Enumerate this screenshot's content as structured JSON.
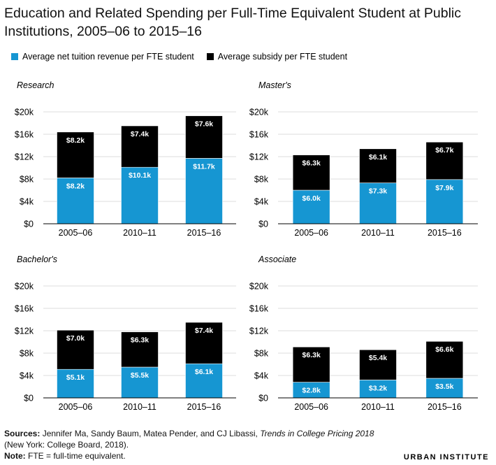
{
  "title": "Education and Related Spending per Full-Time Equivalent Student at Public Institutions, 2005–06 to 2015–16",
  "legend": [
    {
      "label": "Average net tuition revenue per FTE student",
      "color": "#1696d2"
    },
    {
      "label": "Average subsidy per FTE student",
      "color": "#000000"
    }
  ],
  "chart_data": [
    {
      "type": "bar",
      "stacked": true,
      "title": "Research",
      "categories": [
        "2005–06",
        "2010–11",
        "2015–16"
      ],
      "ylim": [
        0,
        20000
      ],
      "yticks": [
        "$0",
        "$4k",
        "$8k",
        "$12k",
        "$16k",
        "$20k"
      ],
      "series": [
        {
          "name": "Average net tuition revenue per FTE student",
          "values": [
            8200,
            10100,
            11700
          ],
          "labels": [
            "$8.2k",
            "$10.1k",
            "$11.7k"
          ]
        },
        {
          "name": "Average subsidy per FTE student",
          "values": [
            8200,
            7400,
            7600
          ],
          "labels": [
            "$8.2k",
            "$7.4k",
            "$7.6k"
          ]
        }
      ]
    },
    {
      "type": "bar",
      "stacked": true,
      "title": "Master's",
      "categories": [
        "2005–06",
        "2010–11",
        "2015–16"
      ],
      "ylim": [
        0,
        20000
      ],
      "yticks": [
        "$0",
        "$4k",
        "$8k",
        "$12k",
        "$16k",
        "$20k"
      ],
      "series": [
        {
          "name": "Average net tuition revenue per FTE student",
          "values": [
            6000,
            7300,
            7900
          ],
          "labels": [
            "$6.0k",
            "$7.3k",
            "$7.9k"
          ]
        },
        {
          "name": "Average subsidy per FTE student",
          "values": [
            6300,
            6100,
            6700
          ],
          "labels": [
            "$6.3k",
            "$6.1k",
            "$6.7k"
          ]
        }
      ]
    },
    {
      "type": "bar",
      "stacked": true,
      "title": "Bachelor's",
      "categories": [
        "2005–06",
        "2010–11",
        "2015–16"
      ],
      "ylim": [
        0,
        20000
      ],
      "yticks": [
        "$0",
        "$4k",
        "$8k",
        "$12k",
        "$16k",
        "$20k"
      ],
      "series": [
        {
          "name": "Average net tuition revenue per FTE student",
          "values": [
            5100,
            5500,
            6100
          ],
          "labels": [
            "$5.1k",
            "$5.5k",
            "$6.1k"
          ]
        },
        {
          "name": "Average subsidy per FTE student",
          "values": [
            7000,
            6300,
            7400
          ],
          "labels": [
            "$7.0k",
            "$6.3k",
            "$7.4k"
          ]
        }
      ]
    },
    {
      "type": "bar",
      "stacked": true,
      "title": "Associate",
      "categories": [
        "2005–06",
        "2010–11",
        "2015–16"
      ],
      "ylim": [
        0,
        20000
      ],
      "yticks": [
        "$0",
        "$4k",
        "$8k",
        "$12k",
        "$16k",
        "$20k"
      ],
      "series": [
        {
          "name": "Average net tuition revenue per FTE student",
          "values": [
            2800,
            3200,
            3500
          ],
          "labels": [
            "$2.8k",
            "$3.2k",
            "$3.5k"
          ]
        },
        {
          "name": "Average subsidy per FTE student",
          "values": [
            6300,
            5400,
            6600
          ],
          "labels": [
            "$6.3k",
            "$5.4k",
            "$6.6k"
          ]
        }
      ]
    }
  ],
  "footer": {
    "sources_label": "Sources:",
    "sources_text_1": " Jennifer Ma, Sandy Baum, Matea Pender, and CJ Libassi, ",
    "sources_italic": "Trends in College Pricing 2018",
    "sources_text_2": " (New York: College Board, 2018).",
    "note_label": "Note:",
    "note_text": " FTE = full-time equivalent."
  },
  "brand": "URBAN INSTITUTE"
}
